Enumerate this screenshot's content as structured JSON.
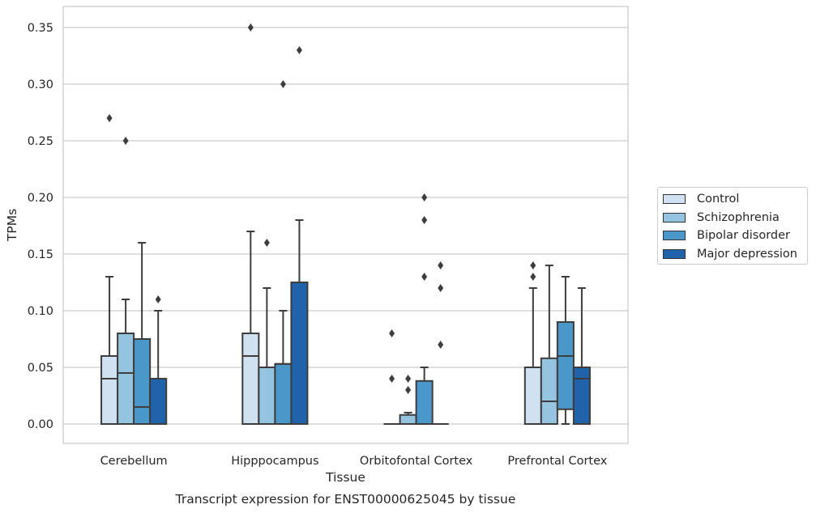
{
  "chart_data": {
    "type": "box",
    "title": "",
    "caption": "Transcript expression for ENST00000625045 by tissue",
    "xlabel": "Tissue",
    "ylabel": "TPMs",
    "ylim": [
      -0.017,
      0.367
    ],
    "yticks": [
      0.0,
      0.05,
      0.1,
      0.15,
      0.2,
      0.25,
      0.3,
      0.35
    ],
    "ytick_labels": [
      "0.00",
      "0.05",
      "0.10",
      "0.15",
      "0.20",
      "0.25",
      "0.30",
      "0.35"
    ],
    "grid": "horizontal",
    "legend_position": "right",
    "categories": [
      "Cerebellum",
      "Hipppocampus",
      "Orbitofontal Cortex",
      "Prefrontal Cortex"
    ],
    "series": [
      {
        "name": "Control",
        "color": "#d0e1f2",
        "boxes": [
          {
            "q1": 0.0,
            "median": 0.04,
            "q3": 0.06,
            "whisker_low": 0.0,
            "whisker_high": 0.13,
            "outliers": [
              0.27
            ]
          },
          {
            "q1": 0.0,
            "median": 0.06,
            "q3": 0.08,
            "whisker_low": 0.0,
            "whisker_high": 0.17,
            "outliers": [
              0.35
            ]
          },
          {
            "q1": 0.0,
            "median": 0.0,
            "q3": 0.0,
            "whisker_low": 0.0,
            "whisker_high": 0.0,
            "outliers": [
              0.04,
              0.08
            ]
          },
          {
            "q1": 0.0,
            "median": 0.0,
            "q3": 0.05,
            "whisker_low": 0.0,
            "whisker_high": 0.12,
            "outliers": [
              0.13,
              0.14
            ]
          }
        ]
      },
      {
        "name": "Schizophrenia",
        "color": "#94c4df",
        "boxes": [
          {
            "q1": 0.0,
            "median": 0.045,
            "q3": 0.08,
            "whisker_low": 0.0,
            "whisker_high": 0.11,
            "outliers": [
              0.25
            ]
          },
          {
            "q1": 0.0,
            "median": 0.05,
            "q3": 0.05,
            "whisker_low": 0.0,
            "whisker_high": 0.12,
            "outliers": [
              0.16
            ]
          },
          {
            "q1": 0.0,
            "median": 0.0,
            "q3": 0.008,
            "whisker_low": 0.0,
            "whisker_high": 0.01,
            "outliers": [
              0.03,
              0.04
            ]
          },
          {
            "q1": 0.0,
            "median": 0.02,
            "q3": 0.058,
            "whisker_low": 0.0,
            "whisker_high": 0.14,
            "outliers": []
          }
        ]
      },
      {
        "name": "Bipolar disorder",
        "color": "#4a98c9",
        "boxes": [
          {
            "q1": 0.0,
            "median": 0.015,
            "q3": 0.075,
            "whisker_low": 0.0,
            "whisker_high": 0.16,
            "outliers": []
          },
          {
            "q1": 0.0,
            "median": 0.053,
            "q3": 0.053,
            "whisker_low": 0.0,
            "whisker_high": 0.1,
            "outliers": [
              0.3
            ]
          },
          {
            "q1": 0.0,
            "median": 0.0,
            "q3": 0.038,
            "whisker_low": 0.0,
            "whisker_high": 0.05,
            "outliers": [
              0.13,
              0.18,
              0.2
            ]
          },
          {
            "q1": 0.013,
            "median": 0.06,
            "q3": 0.09,
            "whisker_low": 0.0,
            "whisker_high": 0.13,
            "outliers": []
          }
        ]
      },
      {
        "name": "Major depression",
        "color": "#2163aa",
        "boxes": [
          {
            "q1": 0.0,
            "median": 0.04,
            "q3": 0.04,
            "whisker_low": 0.0,
            "whisker_high": 0.1,
            "outliers": [
              0.11
            ]
          },
          {
            "q1": 0.0,
            "median": 0.125,
            "q3": 0.125,
            "whisker_low": 0.0,
            "whisker_high": 0.18,
            "outliers": [
              0.33
            ]
          },
          {
            "q1": 0.0,
            "median": 0.0,
            "q3": 0.0,
            "whisker_low": 0.0,
            "whisker_high": 0.0,
            "outliers": [
              0.07,
              0.12,
              0.14
            ]
          },
          {
            "q1": 0.0,
            "median": 0.04,
            "q3": 0.05,
            "whisker_low": 0.0,
            "whisker_high": 0.12,
            "outliers": []
          }
        ]
      }
    ]
  }
}
